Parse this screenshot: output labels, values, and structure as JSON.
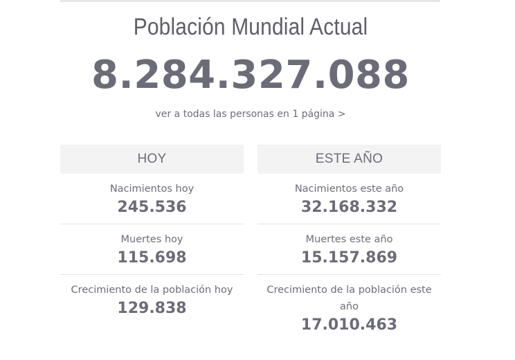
{
  "title": "Población Mundial Actual",
  "counter": "8.284.327.088",
  "see_all_link": "ver a todas las personas en 1 página >",
  "today": {
    "header": "HOY",
    "stats": [
      {
        "label": "Nacimientos hoy",
        "value": "245.536"
      },
      {
        "label": "Muertes hoy",
        "value": "115.698"
      },
      {
        "label": "Crecimiento de la población hoy",
        "value": "129.838"
      }
    ]
  },
  "this_year": {
    "header": "ESTE AÑO",
    "stats": [
      {
        "label": "Nacimientos este año",
        "value": "32.168.332"
      },
      {
        "label": "Muertes este año",
        "value": "15.157.869"
      },
      {
        "label": "Crecimiento de la población este año",
        "value": "17.010.463"
      }
    ]
  },
  "colors": {
    "text": "#6c6c78",
    "header_bg": "#f3f3f3",
    "divider": "#e2e2e2"
  }
}
